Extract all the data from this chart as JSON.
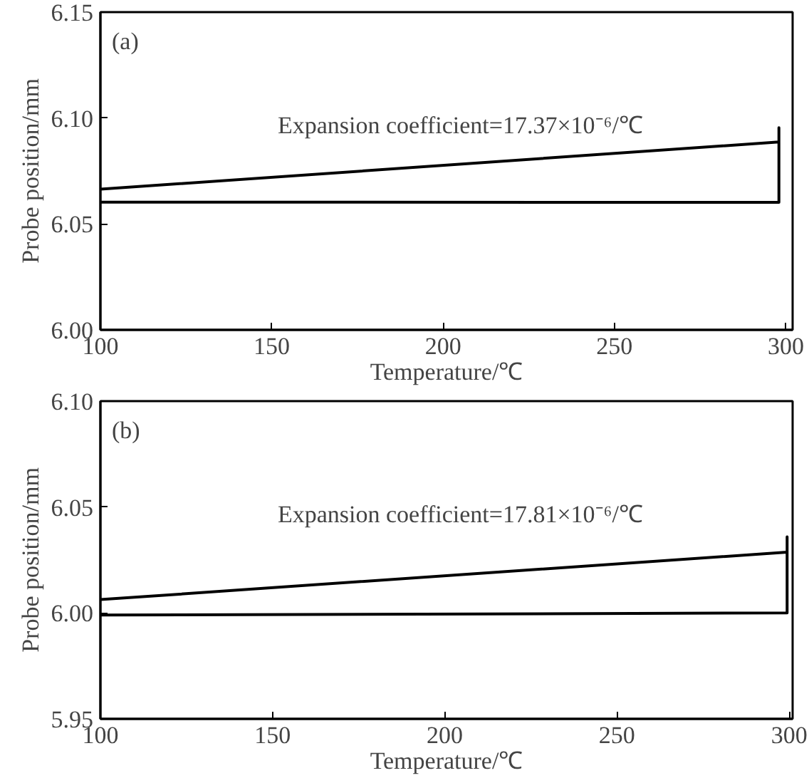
{
  "chart_data": [
    {
      "type": "line",
      "xlabel": "Temperature/℃",
      "ylabel": "Probe position/mm",
      "annotations": [
        "(a)",
        "Expansion coefficient=17.37×10⁻⁶/℃"
      ],
      "xlim": [
        100,
        302
      ],
      "ylim": [
        6.0,
        6.15
      ],
      "xticks": [
        100,
        150,
        200,
        250,
        300
      ],
      "yticks": [
        {
          "value": 6.0,
          "label": "6.00"
        },
        {
          "value": 6.05,
          "label": "6.05"
        },
        {
          "value": 6.1,
          "label": "6.10"
        },
        6.15
      ],
      "grid": false,
      "marker": "none",
      "line_style": "solid",
      "series": [
        {
          "color": "#000000",
          "x": [
            100,
            298,
            298,
            298,
            100
          ],
          "values": [
            6.0664,
            6.0887,
            6.0954,
            6.0602,
            6.0603
          ]
        }
      ]
    },
    {
      "type": "line",
      "xlabel": "Temperature/℃",
      "ylabel": "Probe position/mm",
      "annotations": [
        "(b)",
        "Expansion coefficient=17.81×10⁻⁶/℃"
      ],
      "xlim": [
        100,
        301
      ],
      "ylim": [
        5.95,
        6.1
      ],
      "xticks": [
        100,
        150,
        200,
        250,
        300
      ],
      "yticks": [
        5.95,
        {
          "value": 6.0,
          "label": "6.00"
        },
        6.05,
        {
          "value": 6.1,
          "label": "6.10"
        }
      ],
      "grid": false,
      "marker": "none",
      "line_style": "solid",
      "series": [
        {
          "color": "#000000",
          "x": [
            100,
            299.4,
            299.4,
            299.4,
            100
          ],
          "values": [
            6.0063,
            6.0287,
            6.0359,
            6.0,
            5.999
          ]
        }
      ]
    }
  ]
}
